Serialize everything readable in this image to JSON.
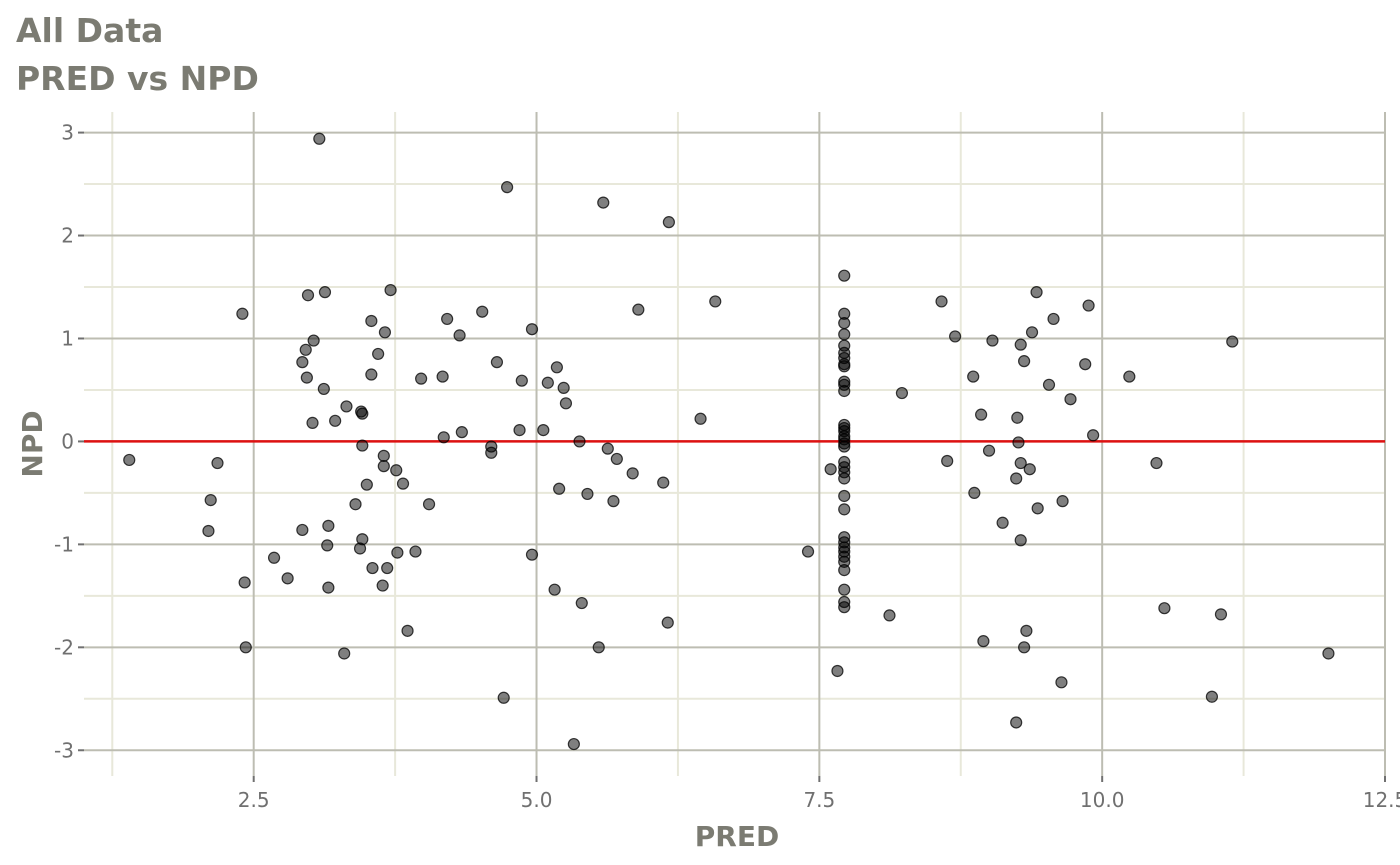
{
  "chart_data": {
    "type": "scatter",
    "title": "All Data",
    "subtitle": "PRED vs NPD",
    "xlabel": "PRED",
    "ylabel": "NPD",
    "xlim": [
      1.0,
      12.5
    ],
    "ylim": [
      -3.25,
      3.2
    ],
    "x_ticks": [
      2.5,
      5.0,
      7.5,
      10.0,
      12.5
    ],
    "x_tick_labels": [
      "2.5",
      "5.0",
      "7.5",
      "10.0",
      "12.5"
    ],
    "y_ticks": [
      -3,
      -2,
      -1,
      0,
      1,
      2,
      3
    ],
    "y_tick_labels": [
      "-3",
      "-2",
      "-1",
      "0",
      "1",
      "2",
      "3"
    ],
    "grid": true,
    "reference_line": {
      "y": 0,
      "color": "#dd1111"
    },
    "point_color": "#000000",
    "points": [
      [
        1.4,
        -0.18
      ],
      [
        2.1,
        -0.87
      ],
      [
        2.12,
        -0.57
      ],
      [
        2.18,
        -0.21
      ],
      [
        2.4,
        1.24
      ],
      [
        2.42,
        -1.37
      ],
      [
        2.43,
        -2.0
      ],
      [
        2.68,
        -1.13
      ],
      [
        2.8,
        -1.33
      ],
      [
        2.93,
        -0.86
      ],
      [
        2.93,
        0.77
      ],
      [
        2.96,
        0.89
      ],
      [
        2.97,
        0.62
      ],
      [
        2.98,
        1.42
      ],
      [
        3.02,
        0.18
      ],
      [
        3.03,
        0.98
      ],
      [
        3.08,
        2.94
      ],
      [
        3.12,
        0.51
      ],
      [
        3.13,
        1.45
      ],
      [
        3.15,
        -1.01
      ],
      [
        3.16,
        -0.82
      ],
      [
        3.16,
        -1.42
      ],
      [
        3.22,
        0.2
      ],
      [
        3.3,
        -2.06
      ],
      [
        3.32,
        0.34
      ],
      [
        3.4,
        -0.61
      ],
      [
        3.44,
        -1.04
      ],
      [
        3.45,
        0.29
      ],
      [
        3.46,
        0.27
      ],
      [
        3.46,
        -0.04
      ],
      [
        3.46,
        -0.95
      ],
      [
        3.5,
        -0.42
      ],
      [
        3.54,
        1.17
      ],
      [
        3.54,
        0.65
      ],
      [
        3.55,
        -1.23
      ],
      [
        3.6,
        0.85
      ],
      [
        3.64,
        -1.4
      ],
      [
        3.65,
        -0.14
      ],
      [
        3.66,
        1.06
      ],
      [
        3.65,
        -0.24
      ],
      [
        3.68,
        -1.23
      ],
      [
        3.71,
        1.47
      ],
      [
        3.76,
        -0.28
      ],
      [
        3.77,
        -1.08
      ],
      [
        3.82,
        -0.41
      ],
      [
        3.86,
        -1.84
      ],
      [
        3.93,
        -1.07
      ],
      [
        3.98,
        0.61
      ],
      [
        4.05,
        -0.61
      ],
      [
        4.17,
        0.63
      ],
      [
        4.18,
        0.04
      ],
      [
        4.21,
        1.19
      ],
      [
        4.32,
        1.03
      ],
      [
        4.34,
        0.09
      ],
      [
        4.52,
        1.26
      ],
      [
        4.6,
        -0.05
      ],
      [
        4.6,
        -0.11
      ],
      [
        4.65,
        0.77
      ],
      [
        4.71,
        -2.49
      ],
      [
        4.74,
        2.47
      ],
      [
        4.85,
        0.11
      ],
      [
        4.87,
        0.59
      ],
      [
        4.96,
        -1.1
      ],
      [
        4.96,
        1.09
      ],
      [
        5.06,
        0.11
      ],
      [
        5.1,
        0.57
      ],
      [
        5.16,
        -1.44
      ],
      [
        5.18,
        0.72
      ],
      [
        5.2,
        -0.46
      ],
      [
        5.24,
        0.52
      ],
      [
        5.26,
        0.37
      ],
      [
        5.33,
        -2.94
      ],
      [
        5.38,
        0.0
      ],
      [
        5.4,
        -1.57
      ],
      [
        5.45,
        -0.51
      ],
      [
        5.55,
        -2.0
      ],
      [
        5.59,
        2.32
      ],
      [
        5.63,
        -0.07
      ],
      [
        5.68,
        -0.58
      ],
      [
        5.71,
        -0.17
      ],
      [
        5.85,
        -0.31
      ],
      [
        5.9,
        1.28
      ],
      [
        6.12,
        -0.4
      ],
      [
        6.16,
        -1.76
      ],
      [
        6.17,
        2.13
      ],
      [
        6.45,
        0.22
      ],
      [
        6.58,
        1.36
      ],
      [
        7.4,
        -1.07
      ],
      [
        7.6,
        -0.27
      ],
      [
        7.66,
        -2.23
      ],
      [
        7.72,
        1.61
      ],
      [
        7.72,
        1.24
      ],
      [
        7.72,
        1.15
      ],
      [
        7.72,
        1.04
      ],
      [
        7.72,
        0.93
      ],
      [
        7.72,
        0.86
      ],
      [
        7.72,
        0.81
      ],
      [
        7.72,
        0.75
      ],
      [
        7.72,
        0.73
      ],
      [
        7.72,
        0.58
      ],
      [
        7.72,
        0.55
      ],
      [
        7.72,
        0.49
      ],
      [
        7.72,
        0.16
      ],
      [
        7.72,
        0.13
      ],
      [
        7.72,
        0.1
      ],
      [
        7.72,
        0.05
      ],
      [
        7.72,
        0.02
      ],
      [
        7.72,
        -0.02
      ],
      [
        7.72,
        -0.05
      ],
      [
        7.72,
        -0.2
      ],
      [
        7.72,
        -0.25
      ],
      [
        7.72,
        -0.3
      ],
      [
        7.72,
        -0.36
      ],
      [
        7.72,
        -0.53
      ],
      [
        7.72,
        -0.66
      ],
      [
        7.72,
        -0.93
      ],
      [
        7.72,
        -0.98
      ],
      [
        7.72,
        -1.03
      ],
      [
        7.72,
        -1.07
      ],
      [
        7.72,
        -1.12
      ],
      [
        7.72,
        -1.17
      ],
      [
        7.72,
        -1.25
      ],
      [
        7.72,
        -1.44
      ],
      [
        7.72,
        -1.56
      ],
      [
        7.72,
        -1.61
      ],
      [
        8.12,
        -1.69
      ],
      [
        8.23,
        0.47
      ],
      [
        8.58,
        1.36
      ],
      [
        8.63,
        -0.19
      ],
      [
        8.7,
        1.02
      ],
      [
        8.86,
        0.63
      ],
      [
        8.87,
        -0.5
      ],
      [
        8.93,
        0.26
      ],
      [
        8.95,
        -1.94
      ],
      [
        9.0,
        -0.09
      ],
      [
        9.03,
        0.98
      ],
      [
        9.12,
        -0.79
      ],
      [
        9.24,
        -0.36
      ],
      [
        9.24,
        -2.73
      ],
      [
        9.25,
        0.23
      ],
      [
        9.26,
        -0.01
      ],
      [
        9.28,
        -0.96
      ],
      [
        9.28,
        0.94
      ],
      [
        9.28,
        -0.21
      ],
      [
        9.31,
        -2.0
      ],
      [
        9.31,
        0.78
      ],
      [
        9.33,
        -1.84
      ],
      [
        9.36,
        -0.27
      ],
      [
        9.38,
        1.06
      ],
      [
        9.42,
        1.45
      ],
      [
        9.43,
        -0.65
      ],
      [
        9.53,
        0.55
      ],
      [
        9.57,
        1.19
      ],
      [
        9.64,
        -2.34
      ],
      [
        9.65,
        -0.58
      ],
      [
        9.72,
        0.41
      ],
      [
        9.85,
        0.75
      ],
      [
        9.88,
        1.32
      ],
      [
        9.92,
        0.06
      ],
      [
        10.24,
        0.63
      ],
      [
        10.48,
        -0.21
      ],
      [
        10.55,
        -1.62
      ],
      [
        10.97,
        -2.48
      ],
      [
        11.05,
        -1.68
      ],
      [
        11.15,
        0.97
      ],
      [
        12.0,
        -2.06
      ]
    ]
  }
}
